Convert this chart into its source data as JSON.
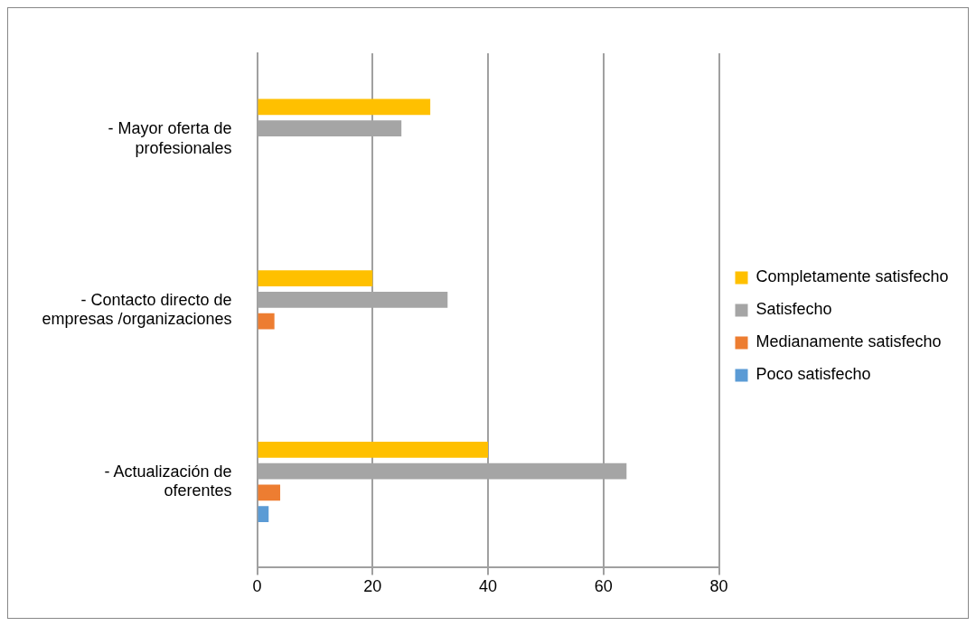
{
  "chart_data": {
    "type": "bar",
    "orientation": "horizontal",
    "categories": [
      "-       Mayor oferta de profesionales",
      "-       Contacto directo de empresas /organizaciones",
      "-       Actualización de oferentes"
    ],
    "series": [
      {
        "name": "Completamente satisfecho",
        "color": "#ffc000",
        "values": [
          30,
          20,
          40
        ]
      },
      {
        "name": "Satisfecho",
        "color": "#a5a5a5",
        "values": [
          25,
          33,
          64
        ]
      },
      {
        "name": "Medianamente satisfecho",
        "color": "#ed7d31",
        "values": [
          null,
          3,
          4
        ]
      },
      {
        "name": "Poco satisfecho",
        "color": "#5b9bd5",
        "values": [
          null,
          null,
          2
        ]
      }
    ],
    "xlim": [
      0,
      80
    ],
    "xticks": [
      0,
      20,
      40,
      60,
      80
    ],
    "grid": "x",
    "legend": "right"
  }
}
